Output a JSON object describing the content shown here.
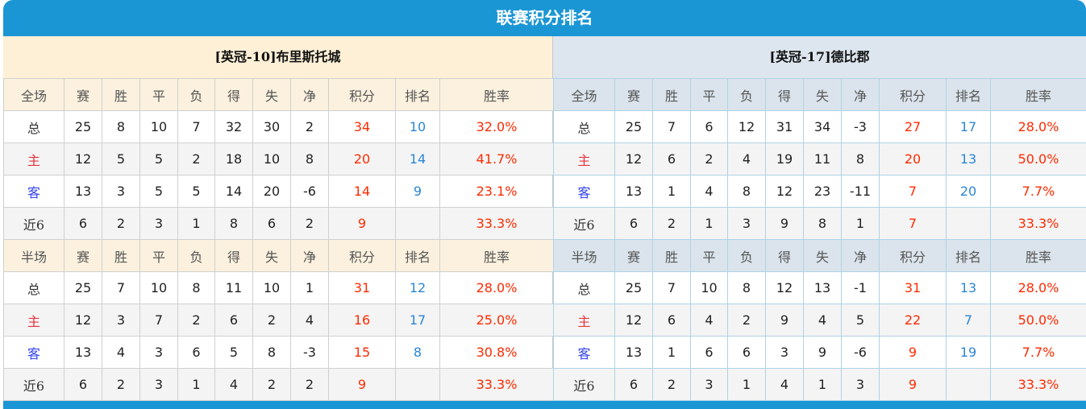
{
  "title": "联赛积分排名",
  "columns_full": [
    "全场",
    "赛",
    "胜",
    "平",
    "负",
    "得",
    "失",
    "净",
    "积分",
    "排名",
    "胜率"
  ],
  "columns_half": [
    "半场",
    "赛",
    "胜",
    "平",
    "负",
    "得",
    "失",
    "净",
    "积分",
    "排名",
    "胜率"
  ],
  "colors": {
    "header_bg": "#1b96d5",
    "points": "#ff2a00",
    "rank": "#2a86d6",
    "home_label": "#e8333c",
    "away_label": "#3344ee"
  },
  "teams": [
    {
      "name": "[英冠-10]布里斯托城",
      "full": [
        [
          "总",
          "25",
          "8",
          "10",
          "7",
          "32",
          "30",
          "2",
          "34",
          "10",
          "32.0%"
        ],
        [
          "主",
          "12",
          "5",
          "5",
          "2",
          "18",
          "10",
          "8",
          "20",
          "14",
          "41.7%"
        ],
        [
          "客",
          "13",
          "3",
          "5",
          "5",
          "14",
          "20",
          "-6",
          "14",
          "9",
          "23.1%"
        ],
        [
          "近6",
          "6",
          "2",
          "3",
          "1",
          "8",
          "6",
          "2",
          "9",
          "",
          "33.3%"
        ]
      ],
      "half": [
        [
          "总",
          "25",
          "7",
          "10",
          "8",
          "11",
          "10",
          "1",
          "31",
          "12",
          "28.0%"
        ],
        [
          "主",
          "12",
          "3",
          "7",
          "2",
          "6",
          "2",
          "4",
          "16",
          "17",
          "25.0%"
        ],
        [
          "客",
          "13",
          "4",
          "3",
          "6",
          "5",
          "8",
          "-3",
          "15",
          "8",
          "30.8%"
        ],
        [
          "近6",
          "6",
          "2",
          "3",
          "1",
          "4",
          "2",
          "2",
          "9",
          "",
          "33.3%"
        ]
      ]
    },
    {
      "name": "[英冠-17]德比郡",
      "full": [
        [
          "总",
          "25",
          "7",
          "6",
          "12",
          "31",
          "34",
          "-3",
          "27",
          "17",
          "28.0%"
        ],
        [
          "主",
          "12",
          "6",
          "2",
          "4",
          "19",
          "11",
          "8",
          "20",
          "13",
          "50.0%"
        ],
        [
          "客",
          "13",
          "1",
          "4",
          "8",
          "12",
          "23",
          "-11",
          "7",
          "20",
          "7.7%"
        ],
        [
          "近6",
          "6",
          "2",
          "1",
          "3",
          "9",
          "8",
          "1",
          "7",
          "",
          "33.3%"
        ]
      ],
      "half": [
        [
          "总",
          "25",
          "7",
          "10",
          "8",
          "12",
          "13",
          "-1",
          "31",
          "13",
          "28.0%"
        ],
        [
          "主",
          "12",
          "6",
          "4",
          "2",
          "9",
          "4",
          "5",
          "22",
          "7",
          "50.0%"
        ],
        [
          "客",
          "13",
          "1",
          "6",
          "6",
          "3",
          "9",
          "-6",
          "9",
          "19",
          "7.7%"
        ],
        [
          "近6",
          "6",
          "2",
          "3",
          "1",
          "4",
          "1",
          "3",
          "9",
          "",
          "33.3%"
        ]
      ]
    }
  ]
}
